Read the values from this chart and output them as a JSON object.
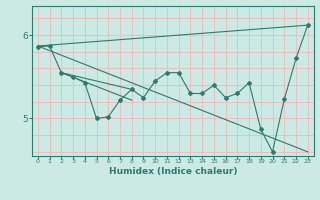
{
  "xlabel": "Humidex (Indice chaleur)",
  "ylabel": "",
  "background_color": "#cceae4",
  "line_color": "#2d7a6e",
  "grid_color": "#f0b8b8",
  "xlim": [
    -0.5,
    23.5
  ],
  "ylim": [
    4.55,
    6.35
  ],
  "yticks": [
    5,
    6
  ],
  "xticks": [
    0,
    1,
    2,
    3,
    4,
    5,
    6,
    7,
    8,
    9,
    10,
    11,
    12,
    13,
    14,
    15,
    16,
    17,
    18,
    19,
    20,
    21,
    22,
    23
  ],
  "series1_x": [
    0,
    1,
    2,
    3,
    4,
    5,
    6,
    7,
    8,
    9,
    10,
    11,
    12,
    13,
    14,
    15,
    16,
    17,
    18,
    19,
    20,
    21,
    22,
    23
  ],
  "series1_y": [
    5.86,
    5.87,
    5.55,
    5.5,
    5.43,
    5.0,
    5.02,
    5.22,
    5.35,
    5.25,
    5.45,
    5.55,
    5.55,
    5.3,
    5.3,
    5.4,
    5.25,
    5.3,
    5.43,
    4.87,
    4.6,
    5.23,
    5.72,
    6.12
  ],
  "trend1_x": [
    0,
    23
  ],
  "trend1_y": [
    5.87,
    6.12
  ],
  "trend2_x": [
    0,
    23
  ],
  "trend2_y": [
    5.87,
    4.6
  ],
  "trend3_x": [
    2,
    8
  ],
  "trend3_y": [
    5.55,
    5.35
  ],
  "trend4_x": [
    2,
    8
  ],
  "trend4_y": [
    5.55,
    5.22
  ]
}
